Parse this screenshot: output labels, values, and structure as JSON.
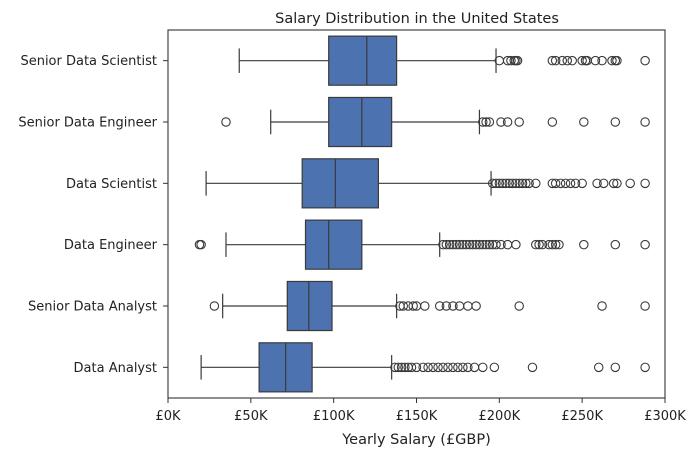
{
  "chart_data": {
    "type": "box",
    "title": "Salary Distribution in the United States",
    "xlabel": "Yearly Salary (£GBP)",
    "ylabel": "",
    "xlim": [
      0,
      300000
    ],
    "grid": false,
    "orientation": "horizontal",
    "box_color": "#4c72b0",
    "line_color": "#3a3a3a",
    "xticks": [
      {
        "value": 0,
        "label": "£0K"
      },
      {
        "value": 50000,
        "label": "£50K"
      },
      {
        "value": 100000,
        "label": "£100K"
      },
      {
        "value": 150000,
        "label": "£150K"
      },
      {
        "value": 200000,
        "label": "£200K"
      },
      {
        "value": 250000,
        "label": "£250K"
      },
      {
        "value": 300000,
        "label": "£300K"
      }
    ],
    "categories": [
      "Senior Data Scientist",
      "Senior Data Engineer",
      "Data Scientist",
      "Data Engineer",
      "Senior Data Analyst",
      "Data Analyst"
    ],
    "boxes": [
      {
        "category": "Senior Data Scientist",
        "whisker_low": 43000,
        "q1": 97000,
        "median": 120000,
        "q3": 138000,
        "whisker_high": 198000,
        "outliers": [
          200000,
          205000,
          207000,
          209000,
          210000,
          211000,
          232000,
          234000,
          238000,
          241000,
          244000,
          250000,
          252000,
          253000,
          258000,
          262000,
          268000,
          270000,
          271000,
          288000
        ]
      },
      {
        "category": "Senior Data Engineer",
        "whisker_low": 62000,
        "q1": 97000,
        "median": 117000,
        "q3": 135000,
        "whisker_high": 188000,
        "outliers": [
          35000,
          190000,
          192000,
          194000,
          201000,
          205000,
          212000,
          232000,
          251000,
          270000,
          288000
        ]
      },
      {
        "category": "Data Scientist",
        "whisker_low": 23000,
        "q1": 81000,
        "median": 101000,
        "q3": 127000,
        "whisker_high": 195000,
        "outliers": [
          196000,
          198000,
          200000,
          202000,
          204000,
          206000,
          208000,
          210000,
          212000,
          214000,
          216000,
          218000,
          222000,
          232000,
          234000,
          237000,
          240000,
          243000,
          246000,
          250000,
          259000,
          263000,
          269000,
          271000,
          279000,
          288000
        ]
      },
      {
        "category": "Data Engineer",
        "whisker_low": 35000,
        "q1": 83000,
        "median": 97000,
        "q3": 117000,
        "whisker_high": 164000,
        "outliers": [
          19000,
          20000,
          166000,
          168000,
          170000,
          172000,
          174000,
          176000,
          178000,
          180000,
          182000,
          184000,
          186000,
          188000,
          190000,
          192000,
          194000,
          196000,
          198000,
          201000,
          205000,
          210000,
          222000,
          224000,
          226000,
          230000,
          232000,
          234000,
          236000,
          251000,
          270000,
          288000
        ]
      },
      {
        "category": "Senior Data Analyst",
        "whisker_low": 33000,
        "q1": 72000,
        "median": 85000,
        "q3": 99000,
        "whisker_high": 138000,
        "outliers": [
          28000,
          140000,
          142000,
          145000,
          148000,
          150000,
          155000,
          164000,
          168000,
          172000,
          176000,
          181000,
          186000,
          212000,
          262000,
          288000
        ]
      },
      {
        "category": "Data Analyst",
        "whisker_low": 20000,
        "q1": 55000,
        "median": 71000,
        "q3": 87000,
        "whisker_high": 135000,
        "outliers": [
          137000,
          139000,
          141000,
          143000,
          145000,
          147000,
          150000,
          154000,
          157000,
          160000,
          163000,
          166000,
          169000,
          172000,
          175000,
          178000,
          181000,
          185000,
          190000,
          197000,
          220000,
          260000,
          270000,
          288000
        ]
      }
    ]
  }
}
